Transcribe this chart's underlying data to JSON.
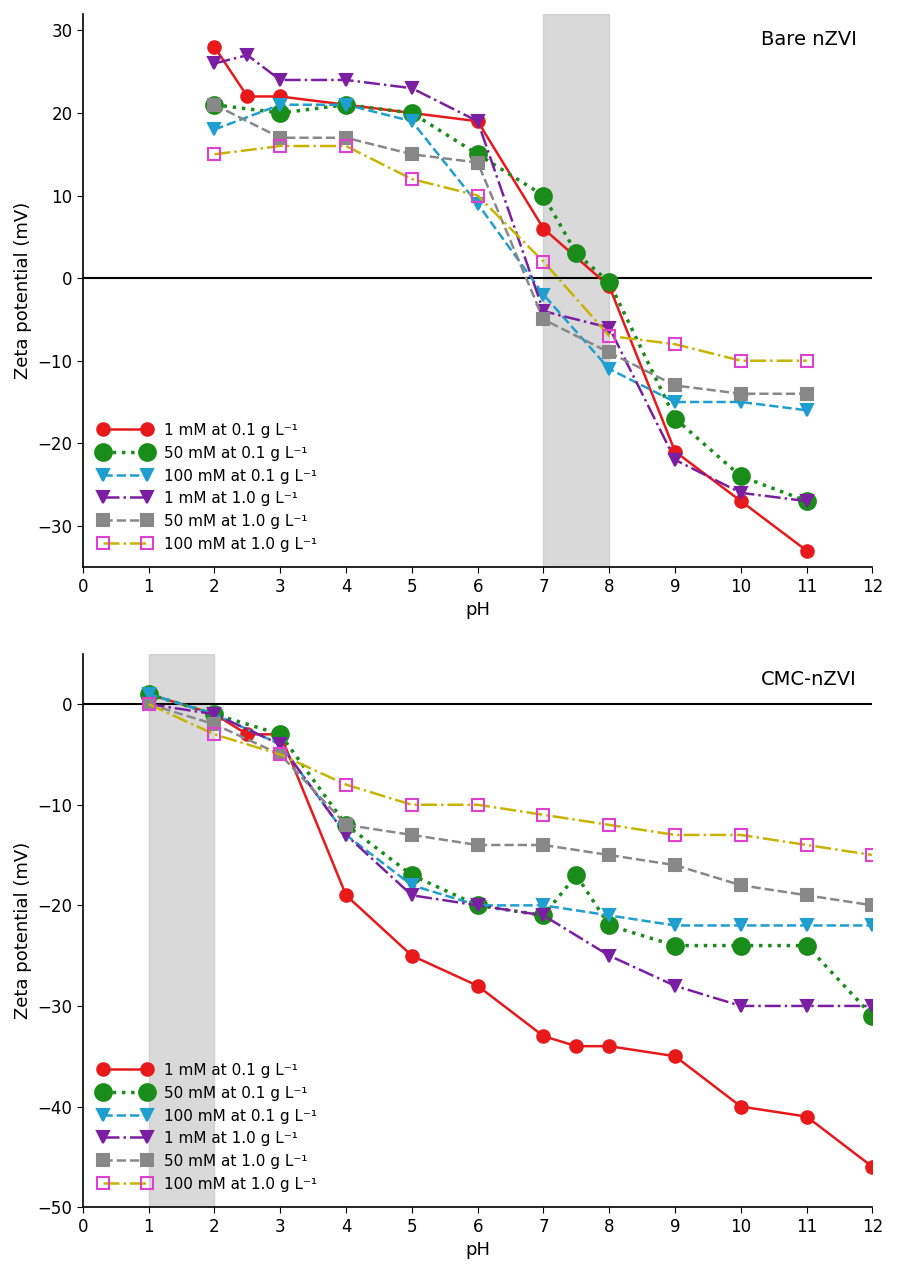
{
  "top_panel": {
    "title": "Bare nZVI",
    "ylabel": "Zeta potential (mV)",
    "xlabel": "pH",
    "xlim": [
      0,
      12
    ],
    "ylim": [
      -35,
      32
    ],
    "yticks": [
      -30,
      -20,
      -10,
      0,
      10,
      20,
      30
    ],
    "xticks": [
      0,
      1,
      2,
      3,
      4,
      5,
      6,
      7,
      8,
      9,
      10,
      11,
      12
    ],
    "gray_band": [
      7,
      8
    ],
    "series": [
      {
        "label": "1 mM at 0.1 g L⁻¹",
        "color": "#e8191a",
        "marker": "o",
        "markersize": 9,
        "linestyle": "-",
        "linewidth": 1.8,
        "markerfacecolor": "#e8191a",
        "markeredgecolor": "#e8191a",
        "filled": true,
        "x": [
          2,
          2.5,
          3,
          4,
          5,
          6,
          7,
          8,
          9,
          10,
          11
        ],
        "y": [
          28,
          22,
          22,
          21,
          20,
          19,
          6,
          -1,
          -21,
          -27,
          -33
        ]
      },
      {
        "label": "50 mM at 0.1 g L⁻¹",
        "color": "#1a8c1a",
        "marker": "o",
        "markersize": 12,
        "linestyle": ":",
        "linewidth": 2.5,
        "markerfacecolor": "#1a8c1a",
        "markeredgecolor": "#1a8c1a",
        "filled": true,
        "x": [
          2,
          3,
          4,
          5,
          6,
          7,
          7.5,
          8,
          9,
          10,
          11
        ],
        "y": [
          21,
          20,
          21,
          20,
          15,
          10,
          3,
          -0.5,
          -17,
          -24,
          -27
        ]
      },
      {
        "label": "100 mM at 0.1 g L⁻¹",
        "color": "#1f9fcf",
        "marker": "v",
        "markersize": 8,
        "linestyle": "--",
        "linewidth": 1.8,
        "markerfacecolor": "#1f9fcf",
        "markeredgecolor": "#1f9fcf",
        "filled": true,
        "x": [
          2,
          3,
          4,
          5,
          6,
          7,
          8,
          9,
          10,
          11
        ],
        "y": [
          18,
          21,
          21,
          19,
          9,
          -2,
          -11,
          -15,
          -15,
          -16
        ]
      },
      {
        "label": "1 mM at 1.0 g L⁻¹",
        "color": "#7b1fa2",
        "marker": "v",
        "markersize": 8,
        "linestyle": "-.",
        "linewidth": 1.8,
        "markerfacecolor": "#7b1fa2",
        "markeredgecolor": "#7b1fa2",
        "filled": true,
        "x": [
          2,
          2.5,
          3,
          4,
          5,
          6,
          7,
          8,
          9,
          10,
          11
        ],
        "y": [
          26,
          27,
          24,
          24,
          23,
          19,
          -4,
          -6,
          -22,
          -26,
          -27
        ]
      },
      {
        "label": "50 mM at 1.0 g L⁻¹",
        "color": "#888888",
        "marker": "s",
        "markersize": 8,
        "linestyle": "--",
        "linewidth": 1.8,
        "markerfacecolor": "#888888",
        "markeredgecolor": "#888888",
        "filled": true,
        "x": [
          2,
          3,
          4,
          5,
          6,
          7,
          8,
          9,
          10,
          11
        ],
        "y": [
          21,
          17,
          17,
          15,
          14,
          -5,
          -9,
          -13,
          -14,
          -14
        ]
      },
      {
        "label": "100 mM at 1.0 g L⁻¹",
        "color": "#c8b400",
        "marker": "s",
        "markersize": 8,
        "linestyle": "-.",
        "linewidth": 1.8,
        "markerfacecolor": "none",
        "markeredgecolor": "#e040d0",
        "filled": false,
        "x": [
          2,
          3,
          4,
          5,
          6,
          7,
          8,
          9,
          10,
          11
        ],
        "y": [
          15,
          16,
          16,
          12,
          10,
          2,
          -7,
          -8,
          -10,
          -10
        ]
      }
    ]
  },
  "bottom_panel": {
    "title": "CMC-nZVI",
    "ylabel": "Zeta potential (mV)",
    "xlabel": "pH",
    "xlim": [
      0,
      12
    ],
    "ylim": [
      -50,
      5
    ],
    "yticks": [
      -50,
      -40,
      -30,
      -20,
      -10,
      0
    ],
    "xticks": [
      0,
      1,
      2,
      3,
      4,
      5,
      6,
      7,
      8,
      9,
      10,
      11,
      12
    ],
    "gray_band": [
      1,
      2
    ],
    "series": [
      {
        "label": "1 mM at 0.1 g L⁻¹",
        "color": "#e8191a",
        "marker": "o",
        "markersize": 9,
        "linestyle": "-",
        "linewidth": 1.8,
        "markerfacecolor": "#e8191a",
        "markeredgecolor": "#e8191a",
        "filled": true,
        "x": [
          1,
          2,
          2.5,
          3,
          4,
          5,
          6,
          7,
          7.5,
          8,
          9,
          10,
          11,
          12
        ],
        "y": [
          1,
          -1,
          -3,
          -3,
          -19,
          -25,
          -28,
          -33,
          -34,
          -34,
          -35,
          -40,
          -41,
          -46
        ]
      },
      {
        "label": "50 mM at 0.1 g L⁻¹",
        "color": "#1a8c1a",
        "marker": "o",
        "markersize": 12,
        "linestyle": ":",
        "linewidth": 2.5,
        "markerfacecolor": "#1a8c1a",
        "markeredgecolor": "#1a8c1a",
        "filled": true,
        "x": [
          1,
          2,
          3,
          4,
          5,
          6,
          7,
          7.5,
          8,
          9,
          10,
          11,
          12
        ],
        "y": [
          1,
          -1,
          -3,
          -12,
          -17,
          -20,
          -21,
          -17,
          -22,
          -24,
          -24,
          -24,
          -31
        ]
      },
      {
        "label": "100 mM at 0.1 g L⁻¹",
        "color": "#1f9fcf",
        "marker": "v",
        "markersize": 8,
        "linestyle": "--",
        "linewidth": 1.8,
        "markerfacecolor": "#1f9fcf",
        "markeredgecolor": "#1f9fcf",
        "filled": true,
        "x": [
          1,
          2,
          3,
          4,
          5,
          6,
          7,
          8,
          9,
          10,
          11,
          12
        ],
        "y": [
          1,
          -1,
          -4,
          -13,
          -18,
          -20,
          -20,
          -21,
          -22,
          -22,
          -22,
          -22
        ]
      },
      {
        "label": "1 mM at 1.0 g L⁻¹",
        "color": "#7b1fa2",
        "marker": "v",
        "markersize": 8,
        "linestyle": "-.",
        "linewidth": 1.8,
        "markerfacecolor": "#7b1fa2",
        "markeredgecolor": "#7b1fa2",
        "filled": true,
        "x": [
          1,
          2,
          3,
          4,
          5,
          6,
          7,
          8,
          9,
          10,
          11,
          12
        ],
        "y": [
          0,
          -1,
          -4,
          -13,
          -19,
          -20,
          -21,
          -25,
          -28,
          -30,
          -30,
          -30
        ]
      },
      {
        "label": "50 mM at 1.0 g L⁻¹",
        "color": "#888888",
        "marker": "s",
        "markersize": 8,
        "linestyle": "--",
        "linewidth": 1.8,
        "markerfacecolor": "#888888",
        "markeredgecolor": "#888888",
        "filled": true,
        "x": [
          1,
          2,
          3,
          4,
          5,
          6,
          7,
          8,
          9,
          10,
          11,
          12
        ],
        "y": [
          0,
          -2,
          -5,
          -12,
          -13,
          -14,
          -14,
          -15,
          -16,
          -18,
          -19,
          -20
        ]
      },
      {
        "label": "100 mM at 1.0 g L⁻¹",
        "color": "#c8b400",
        "marker": "s",
        "markersize": 8,
        "linestyle": "-.",
        "linewidth": 1.8,
        "markerfacecolor": "none",
        "markeredgecolor": "#e040d0",
        "filled": false,
        "x": [
          1,
          2,
          3,
          4,
          5,
          6,
          7,
          8,
          9,
          10,
          11,
          12
        ],
        "y": [
          0,
          -3,
          -5,
          -8,
          -10,
          -10,
          -11,
          -12,
          -13,
          -13,
          -14,
          -15
        ]
      }
    ]
  },
  "fig_width": 8.97,
  "fig_height": 12.73,
  "dpi": 100,
  "background_color": "white",
  "gray_band_color": "#c0c0c0",
  "gray_band_alpha": 0.6,
  "legend_fontsize": 11,
  "axis_fontsize": 13,
  "tick_fontsize": 12,
  "title_fontsize": 14
}
